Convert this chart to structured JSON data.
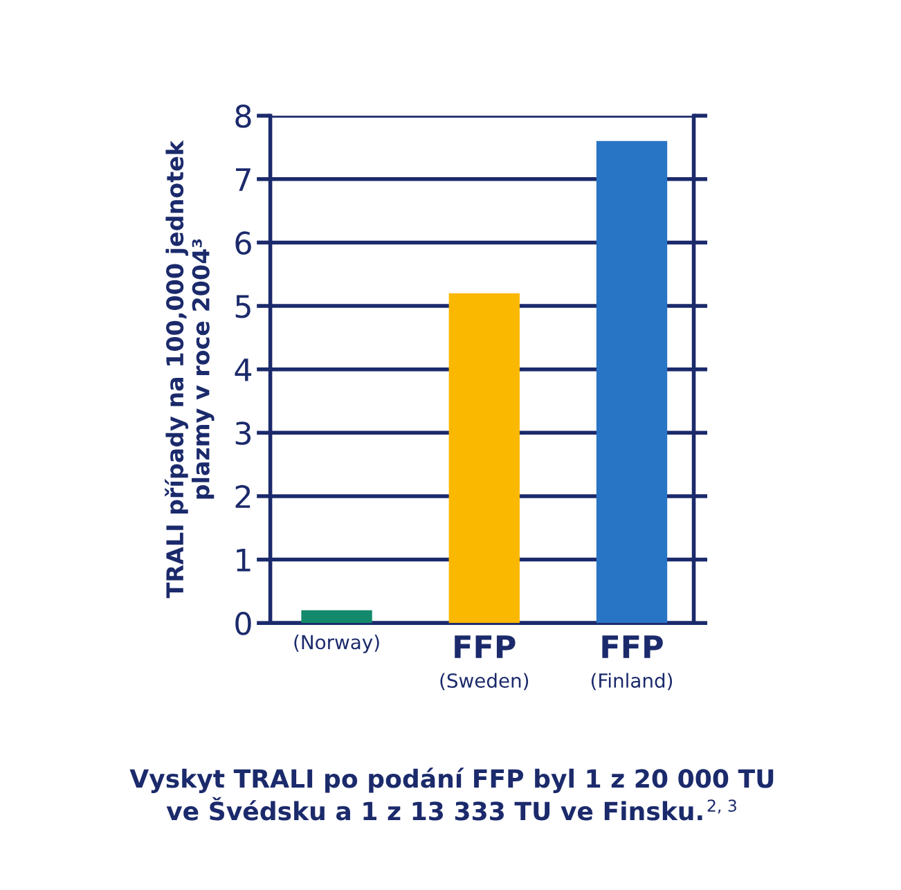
{
  "chart_data": {
    "type": "bar",
    "categories": [
      "(Norway)",
      "FFP\n(Sweden)",
      "FFP\n(Finland)"
    ],
    "values": [
      0.2,
      5.2,
      7.6
    ],
    "colors": [
      "#138a6b",
      "#fbb800",
      "#2874c5"
    ],
    "ylabel": "TRALI případy na 100,000 jednotek\nplazmy v roce 2004³",
    "ylim": [
      0,
      8
    ],
    "yticks": [
      0,
      1,
      2,
      3,
      4,
      5,
      6,
      7,
      8
    ],
    "grid": "y",
    "annotations": [
      "Vyskyt TRALI po podání FFP byl 1 z 20 000 TU\nve Švédsku a 1 z 13 333 TU ve Finsku.$^{2, 3}$"
    ]
  }
}
